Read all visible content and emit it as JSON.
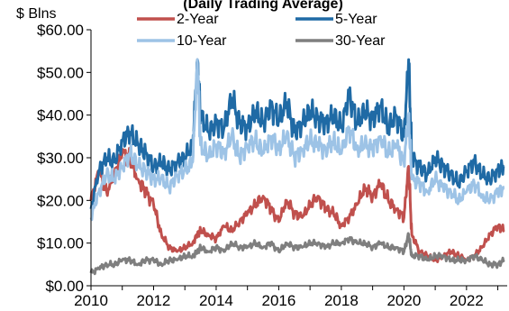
{
  "chart_data": {
    "type": "line",
    "title": "(Daily Trading Average)",
    "ylabel": "$ Blns",
    "xlabel": "",
    "xlim": [
      2010,
      2023.3
    ],
    "ylim": [
      0,
      60
    ],
    "grid": false,
    "legend_position": "top",
    "x_ticks": [
      "2010",
      "2012",
      "2014",
      "2016",
      "2018",
      "2020",
      "2022"
    ],
    "y_ticks": [
      "$0.00",
      "$10.00",
      "$20.00",
      "$30.00",
      "$40.00",
      "$50.00",
      "$60.00"
    ],
    "x": [
      2010.0,
      2010.25,
      2010.5,
      2010.75,
      2011.0,
      2011.25,
      2011.5,
      2011.75,
      2012.0,
      2012.25,
      2012.5,
      2012.75,
      2013.0,
      2013.25,
      2013.4,
      2013.5,
      2013.75,
      2014.0,
      2014.25,
      2014.5,
      2014.75,
      2015.0,
      2015.25,
      2015.5,
      2015.75,
      2016.0,
      2016.25,
      2016.5,
      2016.75,
      2017.0,
      2017.25,
      2017.5,
      2017.75,
      2018.0,
      2018.25,
      2018.5,
      2018.75,
      2019.0,
      2019.25,
      2019.5,
      2019.75,
      2020.0,
      2020.15,
      2020.25,
      2020.5,
      2020.75,
      2021.0,
      2021.25,
      2021.5,
      2021.75,
      2022.0,
      2022.25,
      2022.5,
      2022.75,
      2023.0,
      2023.2
    ],
    "series": [
      {
        "name": "2-Year",
        "color": "#c0504d",
        "values": [
          20,
          27,
          22,
          26,
          31,
          30,
          25,
          22,
          19,
          12,
          9,
          8,
          9,
          10,
          12,
          13,
          12,
          11,
          14,
          13,
          15,
          17,
          19,
          21,
          18,
          15,
          20,
          17,
          16,
          19,
          21,
          18,
          17,
          14,
          16,
          19,
          23,
          21,
          24,
          20,
          18,
          16,
          28,
          12,
          8,
          7,
          6,
          7,
          8,
          7,
          6,
          7,
          9,
          12,
          14,
          13
        ]
      },
      {
        "name": "5-Year",
        "color": "#1f6aa5",
        "values": [
          18,
          27,
          30,
          29,
          34,
          36,
          33,
          31,
          28,
          29,
          27,
          29,
          30,
          33,
          53,
          40,
          36,
          38,
          37,
          44,
          38,
          37,
          41,
          38,
          42,
          39,
          43,
          36,
          38,
          41,
          39,
          38,
          40,
          37,
          45,
          38,
          41,
          39,
          42,
          37,
          40,
          35,
          53,
          30,
          28,
          26,
          30,
          28,
          26,
          24,
          27,
          29,
          26,
          25,
          27,
          28
        ]
      },
      {
        "name": "10-Year",
        "color": "#9dc3e6",
        "values": [
          16,
          22,
          26,
          25,
          28,
          31,
          28,
          27,
          25,
          25,
          23,
          26,
          27,
          29,
          53,
          33,
          30,
          33,
          31,
          35,
          30,
          33,
          34,
          31,
          35,
          32,
          35,
          30,
          32,
          34,
          33,
          32,
          34,
          31,
          37,
          32,
          33,
          32,
          35,
          31,
          33,
          29,
          40,
          25,
          24,
          22,
          25,
          23,
          22,
          20,
          22,
          24,
          21,
          20,
          22,
          23
        ]
      },
      {
        "name": "30-Year",
        "color": "#7f7f7f",
        "values": [
          3,
          4,
          5,
          5,
          6,
          6,
          5,
          6,
          6,
          5,
          6,
          6,
          7,
          7,
          8,
          9,
          8,
          9,
          8,
          10,
          9,
          9,
          10,
          9,
          10,
          8,
          10,
          9,
          9,
          10,
          10,
          9,
          10,
          10,
          11,
          10,
          10,
          9,
          10,
          9,
          9,
          8,
          12,
          7,
          7,
          6,
          7,
          7,
          6,
          6,
          6,
          7,
          6,
          5,
          5,
          6
        ]
      }
    ]
  }
}
